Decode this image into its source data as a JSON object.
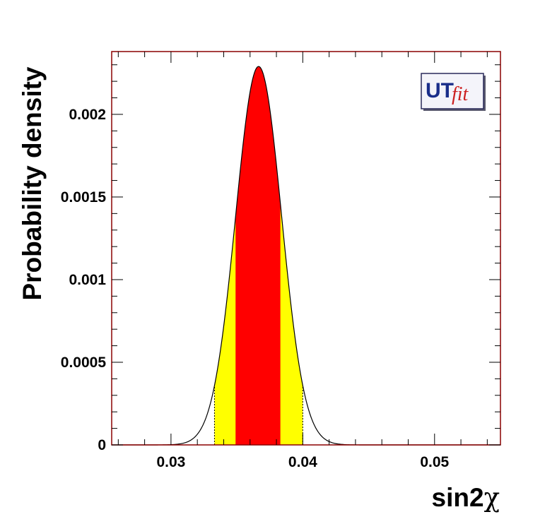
{
  "chart_data": {
    "type": "area",
    "xlabel_main": "sin2",
    "xlabel_greek": "χ",
    "ylabel": "Probability density",
    "xlim": [
      0.0255,
      0.055
    ],
    "ylim": [
      0,
      0.00238
    ],
    "x_ticks": [
      0.03,
      0.04,
      0.05
    ],
    "x_tick_labels": [
      "0.03",
      "0.04",
      "0.05"
    ],
    "y_ticks": [
      0,
      0.0005,
      0.001,
      0.0015,
      0.002
    ],
    "y_tick_labels": [
      "0",
      "0.0005",
      "0.001",
      "0.0015",
      "0.002"
    ],
    "distribution": {
      "mean": 0.03665,
      "sigma": 0.00174,
      "peak": 0.00229
    },
    "intervals": [
      {
        "range": [
          0.0333,
          0.04
        ],
        "color": "#ffff00"
      },
      {
        "range": [
          0.0349,
          0.0383
        ],
        "color": "#ff0000"
      }
    ],
    "colors": {
      "frame": "#8b0000",
      "curve": "#000000",
      "logo_text": "#1a2e8a",
      "logo_fit": "#cc2020"
    },
    "logo": {
      "main": "UT",
      "sub": "fit"
    }
  }
}
